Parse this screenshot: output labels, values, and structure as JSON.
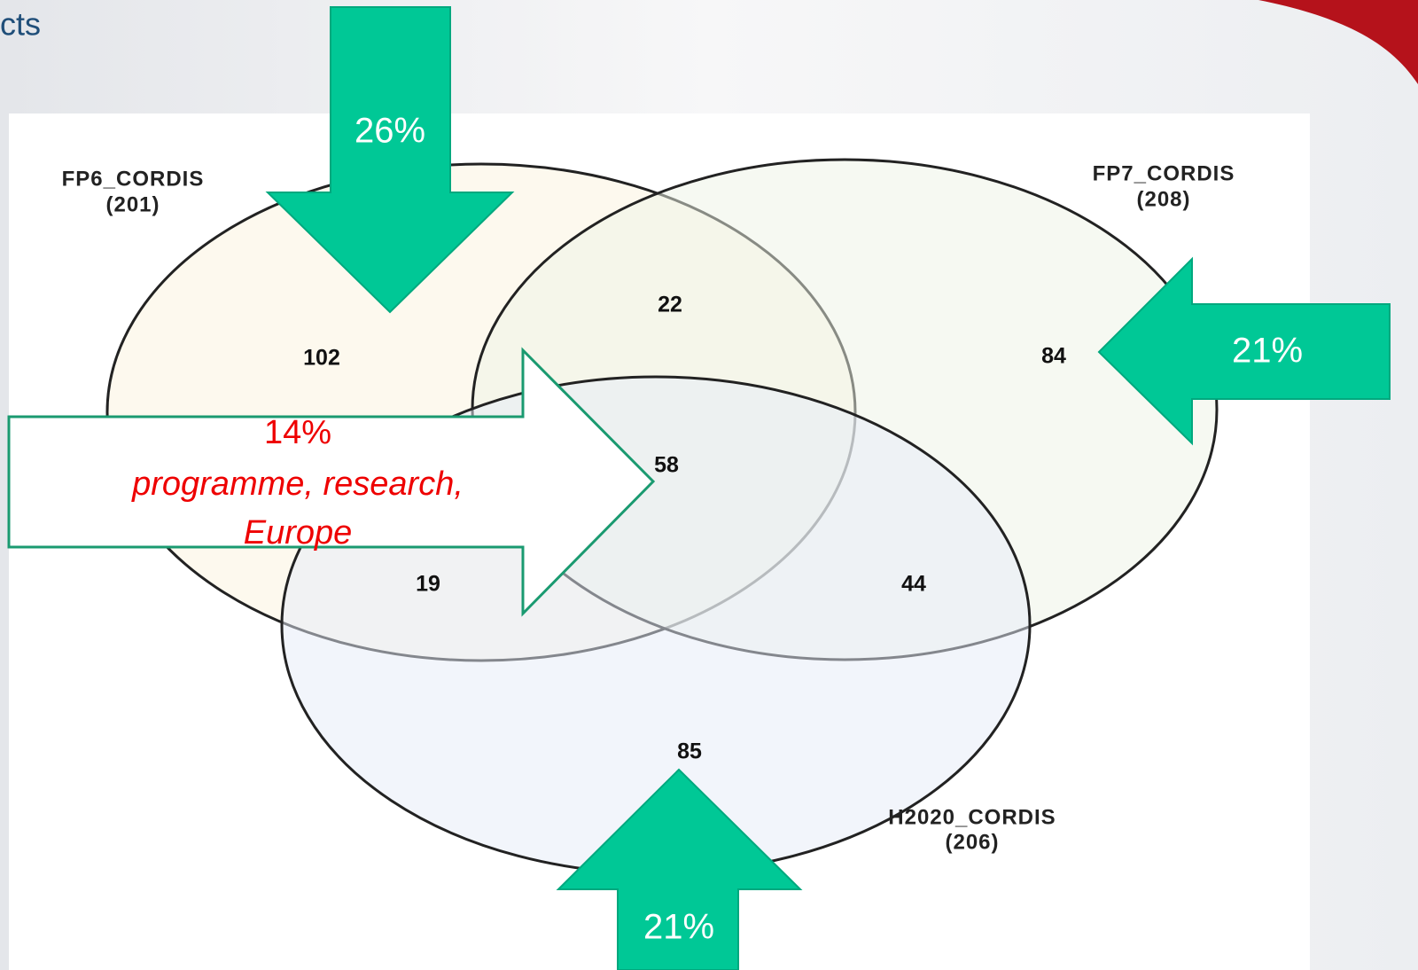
{
  "header": {
    "title": "cts"
  },
  "sets": [
    {
      "name": "FP6_CORDIS",
      "count": "(201)"
    },
    {
      "name": "FP7_CORDIS",
      "count": "(208)"
    },
    {
      "name": "H2020_CORDIS",
      "count": "(206)"
    }
  ],
  "regions": {
    "fp6_only": "102",
    "fp6_fp7": "22",
    "fp7_only": "84",
    "all": "58",
    "fp6_h2020": "19",
    "fp7_h2020": "44",
    "h2020_only": "85"
  },
  "arrows": {
    "fp6": "26%",
    "fp7": "21%",
    "h2020": "21%",
    "shared": {
      "share": "14%",
      "line1": "programme, research,",
      "line2": "Europe"
    }
  }
}
